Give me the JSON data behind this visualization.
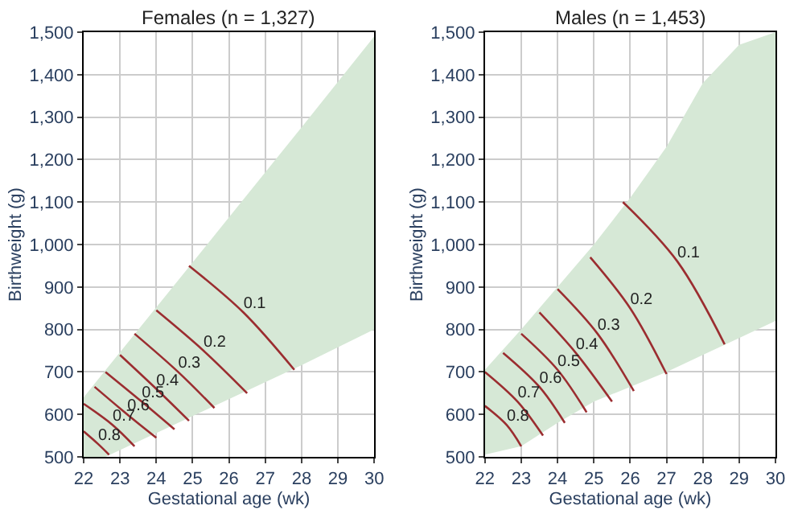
{
  "chart_data": [
    {
      "type": "line",
      "title": "Females (n = 1,327)",
      "xlabel": "Gestational age (wk)",
      "ylabel": "Birthweight (g)",
      "xlim": [
        22,
        30
      ],
      "xticks": [
        22,
        23,
        24,
        25,
        26,
        27,
        28,
        29,
        30
      ],
      "ylim": [
        500,
        1500
      ],
      "yticks": [
        {
          "value": 500,
          "label": "500"
        },
        {
          "value": 600,
          "label": "600"
        },
        {
          "value": 700,
          "label": "700"
        },
        {
          "value": 800,
          "label": "800"
        },
        {
          "value": 900,
          "label": "900"
        },
        {
          "value": 1000,
          "label": "1,000"
        },
        {
          "value": 1100,
          "label": "1,100"
        },
        {
          "value": 1200,
          "label": "1,200"
        },
        {
          "value": 1300,
          "label": "1,300"
        },
        {
          "value": 1400,
          "label": "1,400"
        },
        {
          "value": 1500,
          "label": "1,500"
        }
      ],
      "grid": true,
      "marker": "none",
      "line_style": "solid",
      "series": [
        {
          "color": "#d6e8d6",
          "x": [
            22,
            22.6,
            25,
            28,
            30
          ],
          "values": [
            null,
            null,
            null,
            null,
            null
          ],
          "lower": [
            500,
            500,
            596,
            716,
            800
          ],
          "upper": [
            640,
            704,
            958,
            1276,
            1490
          ]
        },
        {
          "name": "0.1",
          "color": "#9b2d30",
          "x": [
            24.9,
            26.4,
            27.8
          ],
          "values": [
            950,
            840,
            705
          ]
        },
        {
          "name": "0.2",
          "color": "#9b2d30",
          "x": [
            24.0,
            25.3,
            26.5
          ],
          "values": [
            845,
            750,
            650
          ]
        },
        {
          "name": "0.3",
          "color": "#9b2d30",
          "x": [
            23.4,
            24.6,
            25.6
          ],
          "values": [
            790,
            700,
            615
          ]
        },
        {
          "name": "0.4",
          "color": "#9b2d30",
          "x": [
            23.0,
            24.0,
            24.9
          ],
          "values": [
            740,
            660,
            585
          ]
        },
        {
          "name": "0.5",
          "color": "#9b2d30",
          "x": [
            22.6,
            23.6,
            24.5
          ],
          "values": [
            700,
            630,
            565
          ]
        },
        {
          "name": "0.6",
          "color": "#9b2d30",
          "x": [
            22.3,
            23.2,
            24.0
          ],
          "values": [
            665,
            600,
            545
          ]
        },
        {
          "name": "0.7",
          "color": "#9b2d30",
          "x": [
            22.0,
            22.8,
            23.4
          ],
          "values": [
            625,
            575,
            525
          ]
        },
        {
          "name": "0.8",
          "color": "#9b2d30",
          "x": [
            22.0,
            22.4,
            22.7
          ],
          "values": [
            560,
            530,
            505
          ]
        }
      ]
    },
    {
      "type": "line",
      "title": "Males (n = 1,453)",
      "xlabel": "Gestational age (wk)",
      "ylabel": "Birthweight (g)",
      "xlim": [
        22,
        30
      ],
      "xticks": [
        22,
        23,
        24,
        25,
        26,
        27,
        28,
        29,
        30
      ],
      "ylim": [
        500,
        1500
      ],
      "yticks": [
        {
          "value": 500,
          "label": "500"
        },
        {
          "value": 600,
          "label": "600"
        },
        {
          "value": 700,
          "label": "700"
        },
        {
          "value": 800,
          "label": "800"
        },
        {
          "value": 900,
          "label": "900"
        },
        {
          "value": 1000,
          "label": "1,000"
        },
        {
          "value": 1100,
          "label": "1,100"
        },
        {
          "value": 1200,
          "label": "1,200"
        },
        {
          "value": 1300,
          "label": "1,300"
        },
        {
          "value": 1400,
          "label": "1,400"
        },
        {
          "value": 1500,
          "label": "1,500"
        }
      ],
      "grid": true,
      "marker": "none",
      "line_style": "solid",
      "series": [
        {
          "color": "#d6e8d6",
          "x": [
            22,
            23,
            24,
            25,
            26,
            27,
            28,
            29,
            30
          ],
          "values": [
            null,
            null,
            null,
            null,
            null,
            null,
            null,
            null,
            null
          ],
          "lower": [
            505,
            525,
            580,
            630,
            665,
            700,
            740,
            780,
            820
          ],
          "upper": [
            705,
            800,
            900,
            1000,
            1110,
            1230,
            1380,
            1470,
            1500
          ]
        },
        {
          "name": "0.1",
          "color": "#9b2d30",
          "x": [
            25.8,
            27.3,
            28.6
          ],
          "values": [
            1100,
            960,
            765
          ]
        },
        {
          "name": "0.2",
          "color": "#9b2d30",
          "x": [
            24.9,
            26.0,
            27.0
          ],
          "values": [
            970,
            850,
            695
          ]
        },
        {
          "name": "0.3",
          "color": "#9b2d30",
          "x": [
            24.0,
            25.1,
            26.1
          ],
          "values": [
            895,
            790,
            655
          ]
        },
        {
          "name": "0.4",
          "color": "#9b2d30",
          "x": [
            23.5,
            24.5,
            25.5
          ],
          "values": [
            840,
            745,
            630
          ]
        },
        {
          "name": "0.5",
          "color": "#9b2d30",
          "x": [
            23.0,
            24.0,
            24.8
          ],
          "values": [
            790,
            705,
            605
          ]
        },
        {
          "name": "0.6",
          "color": "#9b2d30",
          "x": [
            22.5,
            23.5,
            24.2
          ],
          "values": [
            745,
            665,
            580
          ]
        },
        {
          "name": "0.7",
          "color": "#9b2d30",
          "x": [
            22.0,
            22.9,
            23.6
          ],
          "values": [
            700,
            630,
            550
          ]
        },
        {
          "name": "0.8",
          "color": "#9b2d30",
          "x": [
            22.0,
            22.6,
            23.0
          ],
          "values": [
            620,
            575,
            525
          ]
        }
      ]
    }
  ]
}
